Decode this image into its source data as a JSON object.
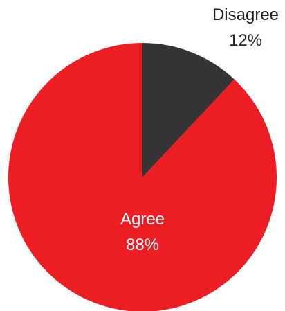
{
  "chart_data": {
    "type": "pie",
    "title": "",
    "slices": [
      {
        "label": "Disagree",
        "value": 12,
        "value_label": "12%",
        "color": "#363334"
      },
      {
        "label": "Agree",
        "value": 88,
        "value_label": "88%",
        "color": "#ec1e24"
      }
    ],
    "start": "12 o'clock",
    "direction": "clockwise",
    "label_colors": {
      "outside": "#231f20",
      "inside": "#ffffff"
    }
  }
}
